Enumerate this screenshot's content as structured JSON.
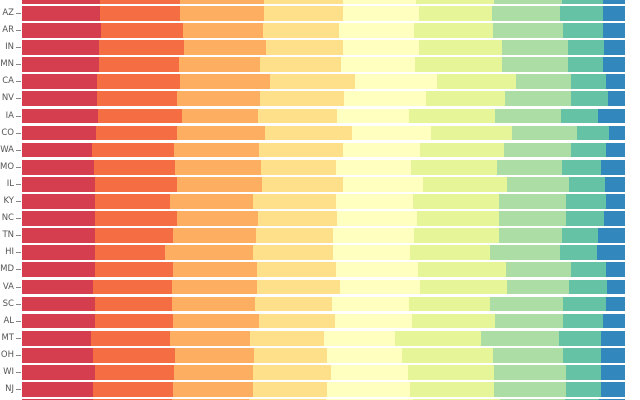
{
  "page": {
    "background": "#ffffff"
  },
  "chart_data": {
    "type": "bar",
    "orientation": "horizontal",
    "normalized": true,
    "title": "",
    "xlabel": "",
    "ylabel": "",
    "x_range_pct": [
      0,
      100
    ],
    "grid": false,
    "legend": "none",
    "axis": {
      "tick_color": "#888888",
      "label_color": "#555555"
    },
    "segment_colors": [
      "#d53e4f",
      "#f46d43",
      "#fdae61",
      "#fee08b",
      "#ffffbf",
      "#e6f598",
      "#abdda4",
      "#66c2a5",
      "#3288bd"
    ],
    "y_axis_tick_labels": [
      "AZ",
      "AR",
      "IN",
      "MN",
      "CA",
      "NV",
      "IA",
      "CO",
      "WA",
      "MO",
      "IL",
      "KY",
      "NC",
      "TN",
      "HI",
      "MD",
      "VA",
      "SC",
      "AL",
      "MT",
      "OH",
      "WI",
      "NJ"
    ],
    "rows": [
      {
        "label": "",
        "partial": "top",
        "values_pct": [
          13.0,
          13.2,
          14.0,
          13.1,
          12.0,
          13.0,
          11.3,
          6.7,
          3.7
        ]
      },
      {
        "label": "AZ",
        "values_pct": [
          13.0,
          13.2,
          14.0,
          13.1,
          12.5,
          12.2,
          11.3,
          7.1,
          3.6
        ]
      },
      {
        "label": "AR",
        "values_pct": [
          13.0,
          13.6,
          13.3,
          12.6,
          12.4,
          13.1,
          11.6,
          6.6,
          3.6
        ]
      },
      {
        "label": "IN",
        "values_pct": [
          12.8,
          14.0,
          13.6,
          12.8,
          12.6,
          13.8,
          10.9,
          5.9,
          3.5
        ]
      },
      {
        "label": "MN",
        "values_pct": [
          12.8,
          13.2,
          13.4,
          13.4,
          12.3,
          14.4,
          11.0,
          5.7,
          3.7
        ]
      },
      {
        "label": "CA",
        "values_pct": [
          12.5,
          13.7,
          14.9,
          14.1,
          13.5,
          13.1,
          9.1,
          5.8,
          3.2
        ]
      },
      {
        "label": "NV",
        "values_pct": [
          12.5,
          13.2,
          13.7,
          13.9,
          13.6,
          13.2,
          10.9,
          6.1,
          2.8
        ]
      },
      {
        "label": "IA",
        "values_pct": [
          12.5,
          14.0,
          12.6,
          13.1,
          11.9,
          14.2,
          10.9,
          6.2,
          4.4
        ]
      },
      {
        "label": "CO",
        "values_pct": [
          12.3,
          13.4,
          14.6,
          14.4,
          13.1,
          13.4,
          10.9,
          5.3,
          2.6
        ]
      },
      {
        "label": "WA",
        "values_pct": [
          11.5,
          13.6,
          14.1,
          13.8,
          12.8,
          13.9,
          11.0,
          5.8,
          3.2
        ]
      },
      {
        "label": "MO",
        "values_pct": [
          12.0,
          13.4,
          14.2,
          12.5,
          12.4,
          14.2,
          10.8,
          6.6,
          3.9
        ]
      },
      {
        "label": "IL",
        "values_pct": [
          12.0,
          13.7,
          14.0,
          13.5,
          13.1,
          14.0,
          10.3,
          5.9,
          3.3
        ]
      },
      {
        "label": "KY",
        "values_pct": [
          12.1,
          12.4,
          13.8,
          13.8,
          12.7,
          14.2,
          11.2,
          6.5,
          3.2
        ]
      },
      {
        "label": "NC",
        "values_pct": [
          12.1,
          13.5,
          13.5,
          13.0,
          13.3,
          13.5,
          11.2,
          6.2,
          3.5
        ]
      },
      {
        "label": "TN",
        "values_pct": [
          12.1,
          13.0,
          13.7,
          12.8,
          13.4,
          14.1,
          10.3,
          6.1,
          4.4
        ]
      },
      {
        "label": "HI",
        "values_pct": [
          12.1,
          11.6,
          14.6,
          13.2,
          12.7,
          13.2,
          11.7,
          6.1,
          4.6
        ]
      },
      {
        "label": "MD",
        "values_pct": [
          12.1,
          13.0,
          13.9,
          13.1,
          13.5,
          14.6,
          10.8,
          5.7,
          3.2
        ]
      },
      {
        "label": "VA",
        "values_pct": [
          11.8,
          13.0,
          14.2,
          13.7,
          13.2,
          14.4,
          10.4,
          6.3,
          2.9
        ]
      },
      {
        "label": "SC",
        "values_pct": [
          12.1,
          12.7,
          13.8,
          12.7,
          12.8,
          13.4,
          12.1,
          7.1,
          3.2
        ]
      },
      {
        "label": "AL",
        "values_pct": [
          12.1,
          13.0,
          14.1,
          12.7,
          12.7,
          13.8,
          11.3,
          6.6,
          3.6
        ]
      },
      {
        "label": "MT",
        "values_pct": [
          11.5,
          13.0,
          13.2,
          12.3,
          11.8,
          14.2,
          13.0,
          7.0,
          3.9
        ]
      },
      {
        "label": "OH",
        "values_pct": [
          11.8,
          13.5,
          13.2,
          12.0,
          12.5,
          15.0,
          11.6,
          6.4,
          3.9
        ]
      },
      {
        "label": "WI",
        "values_pct": [
          12.1,
          13.0,
          13.2,
          12.8,
          12.8,
          14.2,
          11.9,
          5.9,
          3.9
        ]
      },
      {
        "label": "NJ",
        "values_pct": [
          11.8,
          13.2,
          13.2,
          12.2,
          13.7,
          14.0,
          11.9,
          5.7,
          4.0
        ]
      },
      {
        "label": "",
        "partial": "bottom",
        "values_pct": [
          11.8,
          13.1,
          12.8,
          12.7,
          14.5,
          14.4,
          10.9,
          5.6,
          4.3
        ]
      }
    ]
  }
}
